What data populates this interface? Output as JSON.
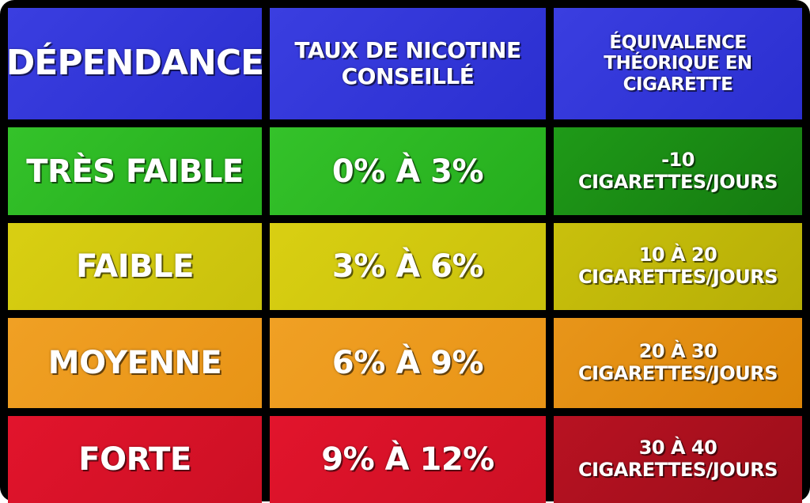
{
  "header": {
    "col1": "DÉPENDANCE",
    "col2": "TAUX DE NICOTINE CONSEILLÉ",
    "col3": "ÉQUIVALENCE THÉORIQUE EN CIGARETTE"
  },
  "rows": [
    {
      "dependance": "TRÈS FAIBLE",
      "taux": "0% À 3%",
      "equivalence": "-10 CIGARETTES/JOURS",
      "color": "#2bb523"
    },
    {
      "dependance": "FAIBLE",
      "taux": "3% À 6%",
      "equivalence": "10 À 20 CIGARETTES/JOURS",
      "color": "#d2c90f"
    },
    {
      "dependance": "MOYENNE",
      "taux": "6% À 9%",
      "equivalence": "20 À 30 CIGARETTES/JOURS",
      "color": "#ec9a1d"
    },
    {
      "dependance": "FORTE",
      "taux": "9% À 12%",
      "equivalence": "30 À 40 CIGARETTES/JOURS",
      "color": "#d81228"
    }
  ],
  "colors": {
    "header": "#3035d8",
    "border": "#000000"
  }
}
